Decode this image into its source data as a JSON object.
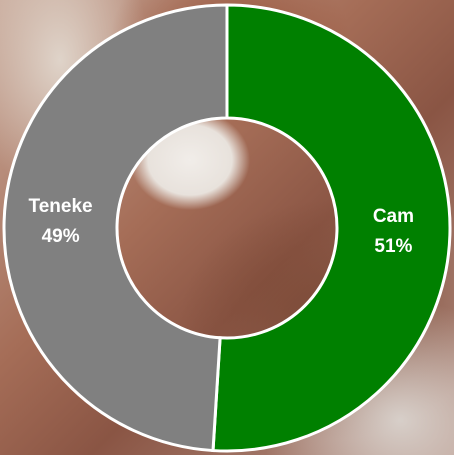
{
  "chart_data": {
    "type": "donut",
    "categories": [
      "Cam",
      "Teneke"
    ],
    "values": [
      51,
      49
    ],
    "value_labels": [
      "51%",
      "49%"
    ],
    "colors": [
      "#008000",
      "#808080"
    ]
  }
}
